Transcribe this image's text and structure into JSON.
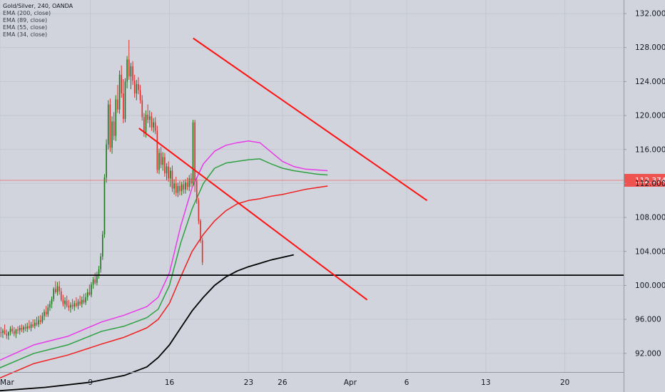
{
  "legend": {
    "title": "Gold/Silver, 240, OANDA",
    "indicators": [
      "EMA (200, close)",
      "EMA (89, close)",
      "EMA (55, close)",
      "EMA (34, close)"
    ]
  },
  "colors": {
    "background": "#d1d4dc",
    "grid": "#c4c7cf",
    "axis_border": "#9598a1",
    "axis_text": "#131722",
    "candle_up": "#1f7a1f",
    "candle_down": "#e0302e",
    "trendline": "#ff1111",
    "support_line": "#000000",
    "price_label_bg": "#ef5350",
    "price_line": "#ef5350"
  },
  "chart_data": {
    "type": "candlestick",
    "symbol": "Gold/Silver",
    "timeframe": "240",
    "source": "OANDA",
    "ylim": [
      89.8,
      133.6
    ],
    "y_ticks": [
      "132.000",
      "128.000",
      "124.000",
      "120.000",
      "116.000",
      "112.000",
      "108.000",
      "104.000",
      "100.000",
      "96.000",
      "92.000"
    ],
    "y_tick_values": [
      132,
      128,
      124,
      120,
      116,
      112,
      108,
      104,
      100,
      96,
      92
    ],
    "x_ticks": [
      "Mar",
      "9",
      "16",
      "23",
      "26",
      "Apr",
      "6",
      "13",
      "20"
    ],
    "x_tick_days": [
      0,
      8,
      15,
      22,
      25,
      31,
      36,
      43,
      50
    ],
    "xlim_days": [
      0,
      55.2
    ],
    "current_price": "112.374",
    "current_price_value": 112.374,
    "support_level": 101.2,
    "bars_per_day": 6,
    "candles": [
      [
        94.5,
        95.1,
        93.9,
        94.4
      ],
      [
        94.4,
        94.9,
        93.8,
        94.7
      ],
      [
        94.7,
        95.4,
        94.2,
        94.3
      ],
      [
        94.3,
        94.8,
        93.7,
        94.1
      ],
      [
        94.1,
        94.6,
        93.6,
        94.5
      ],
      [
        94.5,
        95.2,
        94.1,
        94.9
      ],
      [
        94.9,
        95.3,
        94.3,
        94.6
      ],
      [
        94.6,
        95.1,
        94.0,
        94.3
      ],
      [
        94.3,
        94.9,
        93.8,
        94.8
      ],
      [
        94.8,
        95.2,
        94.3,
        94.7
      ],
      [
        94.7,
        95.3,
        94.2,
        95.0
      ],
      [
        95.0,
        95.4,
        94.5,
        94.8
      ],
      [
        94.8,
        95.3,
        94.4,
        95.1
      ],
      [
        95.1,
        95.5,
        94.6,
        94.9
      ],
      [
        94.9,
        95.6,
        94.5,
        95.2
      ],
      [
        95.2,
        95.9,
        94.8,
        95.0
      ],
      [
        95.0,
        95.7,
        94.6,
        95.4
      ],
      [
        95.4,
        96.0,
        95.0,
        95.2
      ],
      [
        95.2,
        96.0,
        94.9,
        95.6
      ],
      [
        95.6,
        96.3,
        95.2,
        95.4
      ],
      [
        95.4,
        96.4,
        95.1,
        95.9
      ],
      [
        95.9,
        96.5,
        95.4,
        95.7
      ],
      [
        95.7,
        96.8,
        95.5,
        96.4
      ],
      [
        96.4,
        97.2,
        95.9,
        96.9
      ],
      [
        96.9,
        97.6,
        96.3,
        96.6
      ],
      [
        96.6,
        97.8,
        96.3,
        97.4
      ],
      [
        97.4,
        98.2,
        97.0,
        97.8
      ],
      [
        97.8,
        98.7,
        97.3,
        98.4
      ],
      [
        98.4,
        99.8,
        98.1,
        99.6
      ],
      [
        99.6,
        100.5,
        99.0,
        99.2
      ],
      [
        99.2,
        100.4,
        98.8,
        99.9
      ],
      [
        99.9,
        100.5,
        98.9,
        99.3
      ],
      [
        99.3,
        99.7,
        98.1,
        98.3
      ],
      [
        98.3,
        98.9,
        97.5,
        97.8
      ],
      [
        97.8,
        98.6,
        97.2,
        98.2
      ],
      [
        98.2,
        98.8,
        97.4,
        97.6
      ],
      [
        97.6,
        98.3,
        97.0,
        97.4
      ],
      [
        97.4,
        98.0,
        96.8,
        97.7
      ],
      [
        97.7,
        98.4,
        97.2,
        97.5
      ],
      [
        97.5,
        98.2,
        97.0,
        97.9
      ],
      [
        97.9,
        98.6,
        97.4,
        97.6
      ],
      [
        97.6,
        98.4,
        97.2,
        98.1
      ],
      [
        98.1,
        98.8,
        97.6,
        97.8
      ],
      [
        97.8,
        98.7,
        97.4,
        98.3
      ],
      [
        98.3,
        99.0,
        97.8,
        98.0
      ],
      [
        98.0,
        99.1,
        97.7,
        98.6
      ],
      [
        98.6,
        99.6,
        98.2,
        99.2
      ],
      [
        99.2,
        100.1,
        98.8,
        98.9
      ],
      [
        98.9,
        100.4,
        98.6,
        100.1
      ],
      [
        100.1,
        101.0,
        99.6,
        100.7
      ],
      [
        100.7,
        101.5,
        100.1,
        100.3
      ],
      [
        100.3,
        101.6,
        100.0,
        101.2
      ],
      [
        101.2,
        102.3,
        100.8,
        101.9
      ],
      [
        101.9,
        103.8,
        101.5,
        103.4
      ],
      [
        103.4,
        106.4,
        103.0,
        106.0
      ],
      [
        106.0,
        113.1,
        105.6,
        112.7
      ],
      [
        112.7,
        117.2,
        112.1,
        116.6
      ],
      [
        116.6,
        121.8,
        116.0,
        121.3
      ],
      [
        121.3,
        122.0,
        115.7,
        116.2
      ],
      [
        116.2,
        119.9,
        115.5,
        119.3
      ],
      [
        119.3,
        120.4,
        117.1,
        117.6
      ],
      [
        117.6,
        122.4,
        117.0,
        121.9
      ],
      [
        121.9,
        123.6,
        120.3,
        120.7
      ],
      [
        120.7,
        125.3,
        120.2,
        124.8
      ],
      [
        124.8,
        125.9,
        122.1,
        122.6
      ],
      [
        122.6,
        124.3,
        119.1,
        119.6
      ],
      [
        119.6,
        124.4,
        119.2,
        124.0
      ],
      [
        124.0,
        127.0,
        123.2,
        126.6
      ],
      [
        126.6,
        128.9,
        124.2,
        124.6
      ],
      [
        124.6,
        126.2,
        123.1,
        125.8
      ],
      [
        125.8,
        126.4,
        123.6,
        124.1
      ],
      [
        124.1,
        124.8,
        122.1,
        122.6
      ],
      [
        122.6,
        124.2,
        121.8,
        123.7
      ],
      [
        123.7,
        124.5,
        122.5,
        123.0
      ],
      [
        123.0,
        123.6,
        121.4,
        121.8
      ],
      [
        121.8,
        122.4,
        119.4,
        119.8
      ],
      [
        119.8,
        120.3,
        117.5,
        117.9
      ],
      [
        117.9,
        120.6,
        117.4,
        120.1
      ],
      [
        120.1,
        121.3,
        119.1,
        119.5
      ],
      [
        119.5,
        120.6,
        118.6,
        119.9
      ],
      [
        119.9,
        120.4,
        118.2,
        118.6
      ],
      [
        118.6,
        119.7,
        118.0,
        119.2
      ],
      [
        119.2,
        119.8,
        117.8,
        118.2
      ],
      [
        118.2,
        118.8,
        113.2,
        113.6
      ],
      [
        113.6,
        116.1,
        113.1,
        115.6
      ],
      [
        115.6,
        116.3,
        113.8,
        114.2
      ],
      [
        114.2,
        115.7,
        113.5,
        115.1
      ],
      [
        115.1,
        115.6,
        112.8,
        113.2
      ],
      [
        113.2,
        114.4,
        112.4,
        114.0
      ],
      [
        114.0,
        114.6,
        112.2,
        112.6
      ],
      [
        112.6,
        113.9,
        111.6,
        113.5
      ],
      [
        113.5,
        114.1,
        111.0,
        111.4
      ],
      [
        111.4,
        112.5,
        110.7,
        112.0
      ],
      [
        112.0,
        112.8,
        110.5,
        110.9
      ],
      [
        110.9,
        112.1,
        110.4,
        111.7
      ],
      [
        111.7,
        112.3,
        110.6,
        111.1
      ],
      [
        111.1,
        112.2,
        110.6,
        111.9
      ],
      [
        111.9,
        112.4,
        110.8,
        111.3
      ],
      [
        111.3,
        112.5,
        110.8,
        112.1
      ],
      [
        112.1,
        112.7,
        111.2,
        111.6
      ],
      [
        111.6,
        113.0,
        111.1,
        112.6
      ],
      [
        112.6,
        113.2,
        111.6,
        112.0
      ],
      [
        112.0,
        119.5,
        111.7,
        119.2
      ],
      [
        119.2,
        119.5,
        111.0,
        112.3
      ],
      [
        112.3,
        112.7,
        109.6,
        110.0
      ],
      [
        110.0,
        110.3,
        107.2,
        107.6
      ],
      [
        107.6,
        107.8,
        105.0,
        105.3
      ],
      [
        105.3,
        105.6,
        102.4,
        102.7
      ]
    ],
    "ema": [
      {
        "length": 200,
        "color": "#000000",
        "values": [
          [
            0,
            87.6
          ],
          [
            4,
            88.0
          ],
          [
            8,
            88.6
          ],
          [
            11,
            89.4
          ],
          [
            13,
            90.4
          ],
          [
            14,
            91.5
          ],
          [
            15,
            93.0
          ],
          [
            16,
            95.0
          ],
          [
            17,
            97.0
          ],
          [
            18,
            98.6
          ],
          [
            19,
            100.0
          ],
          [
            20,
            101.0
          ],
          [
            21,
            101.7
          ],
          [
            22,
            102.2
          ],
          [
            23,
            102.6
          ],
          [
            24,
            103.0
          ],
          [
            25,
            103.3
          ],
          [
            26,
            103.6
          ]
        ]
      },
      {
        "length": 89,
        "color": "#ef1f1f",
        "values": [
          [
            0,
            89.1
          ],
          [
            3,
            90.8
          ],
          [
            6,
            91.8
          ],
          [
            9,
            93.1
          ],
          [
            11,
            93.9
          ],
          [
            13,
            95.0
          ],
          [
            14,
            96.0
          ],
          [
            15,
            97.9
          ],
          [
            16,
            101.0
          ],
          [
            17,
            104.0
          ],
          [
            18,
            106.0
          ],
          [
            19,
            107.6
          ],
          [
            20,
            108.8
          ],
          [
            21,
            109.6
          ],
          [
            22,
            110.0
          ],
          [
            23,
            110.2
          ],
          [
            24,
            110.5
          ],
          [
            25,
            110.7
          ],
          [
            26,
            111.0
          ],
          [
            27,
            111.3
          ],
          [
            28,
            111.5
          ],
          [
            29,
            111.7
          ]
        ]
      },
      {
        "length": 55,
        "color": "#2ea043",
        "values": [
          [
            0,
            90.3
          ],
          [
            3,
            92.0
          ],
          [
            6,
            93.0
          ],
          [
            9,
            94.6
          ],
          [
            11,
            95.2
          ],
          [
            13,
            96.2
          ],
          [
            14,
            97.2
          ],
          [
            15,
            100.0
          ],
          [
            16,
            105.0
          ],
          [
            17,
            109.0
          ],
          [
            18,
            112.0
          ],
          [
            19,
            113.8
          ],
          [
            20,
            114.4
          ],
          [
            21,
            114.6
          ],
          [
            22,
            114.8
          ],
          [
            23,
            114.9
          ],
          [
            24,
            114.3
          ],
          [
            25,
            113.8
          ],
          [
            26,
            113.5
          ],
          [
            27,
            113.3
          ],
          [
            28,
            113.1
          ],
          [
            29,
            113.0
          ]
        ]
      },
      {
        "length": 34,
        "color": "#e83be8",
        "values": [
          [
            0,
            91.2
          ],
          [
            3,
            93.0
          ],
          [
            6,
            94.0
          ],
          [
            9,
            95.7
          ],
          [
            11,
            96.5
          ],
          [
            13,
            97.5
          ],
          [
            14,
            98.6
          ],
          [
            15,
            101.5
          ],
          [
            16,
            107.0
          ],
          [
            17,
            111.5
          ],
          [
            18,
            114.3
          ],
          [
            19,
            115.8
          ],
          [
            20,
            116.5
          ],
          [
            21,
            116.8
          ],
          [
            22,
            117.0
          ],
          [
            23,
            116.8
          ],
          [
            24,
            115.7
          ],
          [
            25,
            114.6
          ],
          [
            26,
            114.0
          ],
          [
            27,
            113.7
          ],
          [
            28,
            113.6
          ],
          [
            29,
            113.5
          ]
        ]
      }
    ],
    "trendlines": [
      {
        "from": [
          17.1,
          129.1
        ],
        "to": [
          37.8,
          110.0
        ],
        "color": "#ff1111"
      },
      {
        "from": [
          12.3,
          118.5
        ],
        "to": [
          32.5,
          98.3
        ],
        "color": "#ff1111"
      }
    ]
  }
}
